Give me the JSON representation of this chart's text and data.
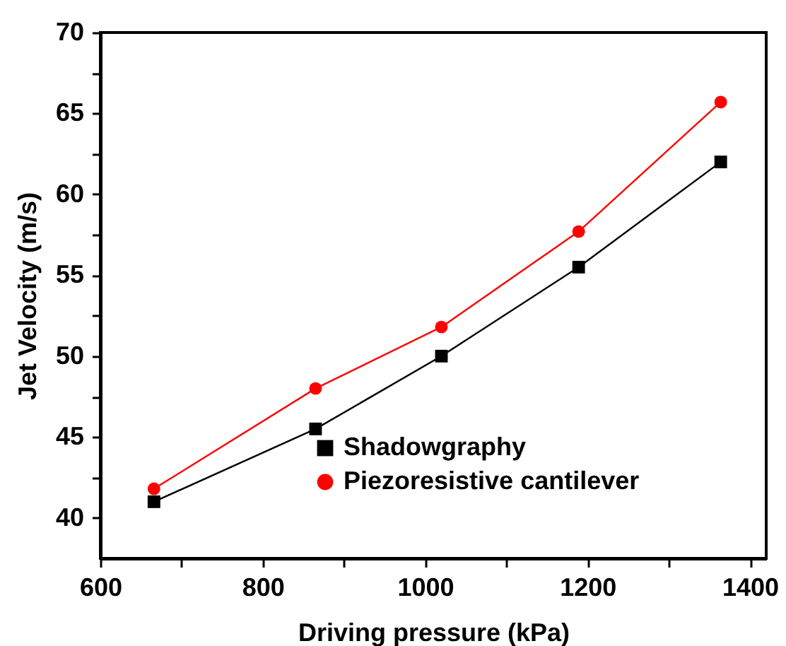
{
  "chart_data": {
    "type": "line",
    "xlabel": "Driving pressure (kPa)",
    "ylabel": "Jet Velocity (m/s)",
    "xlim": [
      600,
      1420
    ],
    "ylim": [
      37.5,
      70
    ],
    "xticks": [
      600,
      {
        "value": 700,
        "label": null
      },
      800,
      {
        "value": 900,
        "label": null
      },
      1000,
      {
        "value": 1100,
        "label": null
      },
      1200,
      {
        "value": 1300,
        "label": null
      },
      1400
    ],
    "yticks": [
      40,
      {
        "value": 42.5,
        "label": null
      },
      45,
      {
        "value": 47.5,
        "label": null
      },
      50,
      {
        "value": 52.5,
        "label": null
      },
      55,
      {
        "value": 57.5,
        "label": null
      },
      60,
      {
        "value": 62.5,
        "label": null
      },
      65,
      {
        "value": 67.5,
        "label": null
      },
      70
    ],
    "x": [
      666,
      865,
      1020,
      1189,
      1364
    ],
    "legend": "bottom",
    "grid": false,
    "line_style": "solid",
    "series": [
      {
        "name": "Shadowgraphy",
        "color": "#000000",
        "marker": "square",
        "values": [
          41,
          45.5,
          50,
          55.5,
          62
        ]
      },
      {
        "name": "Piezoresistive cantilever",
        "color": "#ff0000",
        "marker": "circle",
        "values": [
          41.8,
          48,
          51.8,
          57.7,
          65.7
        ]
      }
    ]
  }
}
